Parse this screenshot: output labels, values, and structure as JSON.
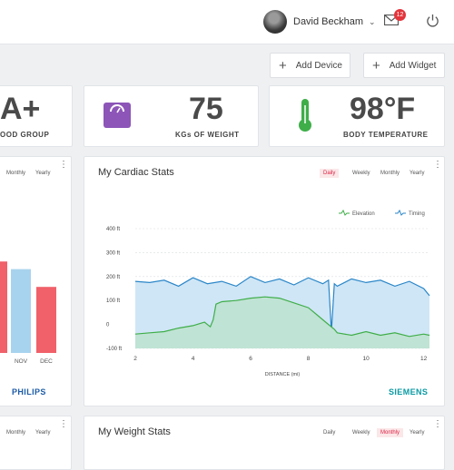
{
  "user": {
    "name": "David Beckham"
  },
  "notifications": {
    "count": "12"
  },
  "actions": {
    "add_device": "Add Device",
    "add_widget": "Add Widget"
  },
  "stats": {
    "blood": {
      "value": "A+",
      "label": "OOD GROUP"
    },
    "weight": {
      "value": "75",
      "label": "KGs OF WEIGHT"
    },
    "temp": {
      "value": "98°F",
      "label": "BODY TEMPERATURE"
    }
  },
  "left_card": {
    "tabs": [
      "Monthly",
      "Yearly"
    ],
    "months": [
      "NOV",
      "DEC"
    ],
    "bars": [
      {
        "label": "",
        "value": 0.72,
        "color": "#f0616a"
      },
      {
        "label": "NOV",
        "value": 0.66,
        "color": "#a8d3ee"
      },
      {
        "label": "DEC",
        "value": 0.52,
        "color": "#f0616a"
      }
    ],
    "brand": "PHILIPS"
  },
  "cardiac": {
    "title": "My Cardiac Stats",
    "tabs": [
      "Daily",
      "Weekly",
      "Monthly",
      "Yearly"
    ],
    "active_tab": "Daily",
    "brand": "SIEMENS"
  },
  "chart_data": {
    "type": "area",
    "xlabel": "DISTANCE (mi)",
    "ylabel": "",
    "x_ticks": [
      "2",
      "4",
      "6",
      "8",
      "10",
      "12"
    ],
    "y_ticks": [
      "400 ft",
      "300 ft",
      "200 ft",
      "100 ft",
      "0",
      "-100 ft"
    ],
    "xlim": [
      2,
      12.2
    ],
    "ylim": [
      -100,
      400
    ],
    "legend_position": "top-right",
    "series": [
      {
        "name": "Elevation",
        "color": "#3fae49",
        "fill": "#bfe3d4",
        "x": [
          2,
          2.5,
          3,
          3.5,
          4,
          4.4,
          4.6,
          4.7,
          4.8,
          5,
          5.5,
          6,
          6.5,
          7,
          7.5,
          8,
          8.3,
          8.6,
          8.9,
          9,
          9.5,
          10,
          10.5,
          11,
          11.5,
          12,
          12.2
        ],
        "y": [
          -40,
          -35,
          -30,
          -15,
          -5,
          10,
          -10,
          20,
          85,
          95,
          100,
          110,
          115,
          110,
          90,
          70,
          40,
          10,
          -20,
          -35,
          -45,
          -30,
          -45,
          -35,
          -50,
          -40,
          -45
        ]
      },
      {
        "name": "Timing",
        "color": "#2a86c8",
        "fill": "#cfe6f6",
        "x": [
          2,
          2.5,
          3,
          3.5,
          4,
          4.5,
          5,
          5.5,
          6,
          6.5,
          7,
          7.5,
          8,
          8.5,
          8.7,
          8.8,
          8.9,
          9,
          9.5,
          10,
          10.5,
          11,
          11.5,
          12,
          12.2
        ],
        "y": [
          180,
          175,
          185,
          160,
          195,
          170,
          180,
          160,
          200,
          175,
          190,
          165,
          195,
          170,
          185,
          -30,
          170,
          160,
          190,
          175,
          185,
          160,
          180,
          150,
          120
        ]
      }
    ]
  },
  "weight_card": {
    "title": "My Weight Stats",
    "tabs": [
      "Daily",
      "Weekly",
      "Monthly",
      "Yearly"
    ],
    "active_tab": "Monthly"
  },
  "bottom_left": {
    "tabs": [
      "Monthly",
      "Yearly"
    ]
  }
}
